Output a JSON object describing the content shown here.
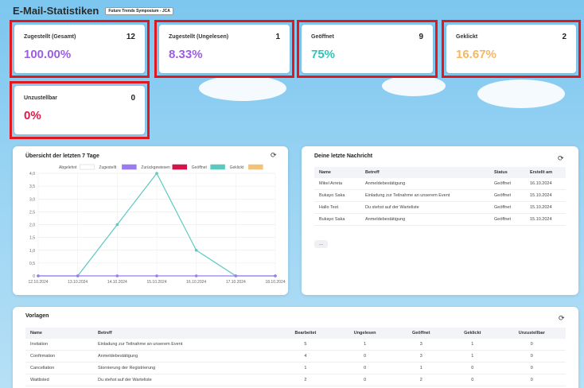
{
  "header": {
    "title": "E-Mail-Statistiken",
    "badge": "Future Trends Symposium - JCA"
  },
  "stats": [
    {
      "label": "Zugestellt (Gesamt)",
      "count": "12",
      "value": "100.00%",
      "color": "#9b5de5"
    },
    {
      "label": "Zugestellt (Ungelesen)",
      "count": "1",
      "value": "8.33%",
      "color": "#9b5de5"
    },
    {
      "label": "Geöffnet",
      "count": "9",
      "value": "75%",
      "color": "#2ec4b6"
    },
    {
      "label": "Geklickt",
      "count": "2",
      "value": "16.67%",
      "color": "#f4b860"
    },
    {
      "label": "Unzustellbar",
      "count": "0",
      "value": "0%",
      "color": "#e0194a"
    }
  ],
  "chart_panel": {
    "title": "Übersicht der letzten 7 Tage",
    "refresh_icon": "refresh-icon"
  },
  "chart_data": {
    "type": "line",
    "x": [
      "12.10.2024",
      "13.10.2024",
      "14.10.2024",
      "15.10.2024",
      "16.10.2024",
      "17.10.2024",
      "18.10.2024"
    ],
    "ylim": [
      0,
      4
    ],
    "yticks": [
      "0",
      "0,5",
      "1,0",
      "1,5",
      "2,0",
      "2,5",
      "3,0",
      "3,5",
      "4,0"
    ],
    "legend": [
      {
        "name": "Abgelehnt",
        "color": "#ffffff"
      },
      {
        "name": "Zugestellt",
        "color": "#9b7bf2"
      },
      {
        "name": "Zurückgewiesen",
        "color": "#d6124b"
      },
      {
        "name": "Geöffnet",
        "color": "#5cc9c0"
      },
      {
        "name": "Geklickt",
        "color": "#f2c17a"
      }
    ],
    "series": [
      {
        "name": "Geöffnet",
        "color": "#5cc9c0",
        "values": [
          0,
          0,
          2,
          4,
          1,
          0,
          0
        ]
      },
      {
        "name": "Zugestellt",
        "color": "#9b7bf2",
        "values": [
          0,
          0,
          0,
          0,
          0,
          0,
          0
        ]
      }
    ]
  },
  "messages": {
    "title": "Deine letzte Nachricht",
    "columns": [
      "Name",
      "Betreff",
      "Status",
      "Erstellt am"
    ],
    "rows": [
      [
        "Mikel Arreta",
        "Anmeldebestätigung",
        "Geöffnet",
        "16.10.2024"
      ],
      [
        "Bukayo Saka",
        "Einladung zur Teilnahme an unserem Event",
        "Geöffnet",
        "15.10.2024"
      ],
      [
        "Hallo Test",
        "Du stehst auf der Warteliste",
        "Geöffnet",
        "15.10.2024"
      ],
      [
        "Bukayo Saka",
        "Anmeldebestätigung",
        "Geöffnet",
        "15.10.2024"
      ]
    ],
    "more": "..."
  },
  "templates": {
    "title": "Vorlagen",
    "columns": [
      "Name",
      "Betreff",
      "Bearbeitet",
      "Ungelesen",
      "Geöffnet",
      "Geklickt",
      "Unzustellbar"
    ],
    "rows": [
      [
        "Invitation",
        "Einladung zur Teilnahme an unserem Event",
        "5",
        "1",
        "3",
        "1",
        "0"
      ],
      [
        "Confirmation",
        "Anmeldebestätigung",
        "4",
        "0",
        "3",
        "1",
        "0"
      ],
      [
        "Cancellation",
        "Stornierung der Registrierung",
        "1",
        "0",
        "1",
        "0",
        "0"
      ],
      [
        "Waitlisted",
        "Du stehst auf der Warteliste",
        "2",
        "0",
        "2",
        "0",
        "0"
      ]
    ]
  }
}
